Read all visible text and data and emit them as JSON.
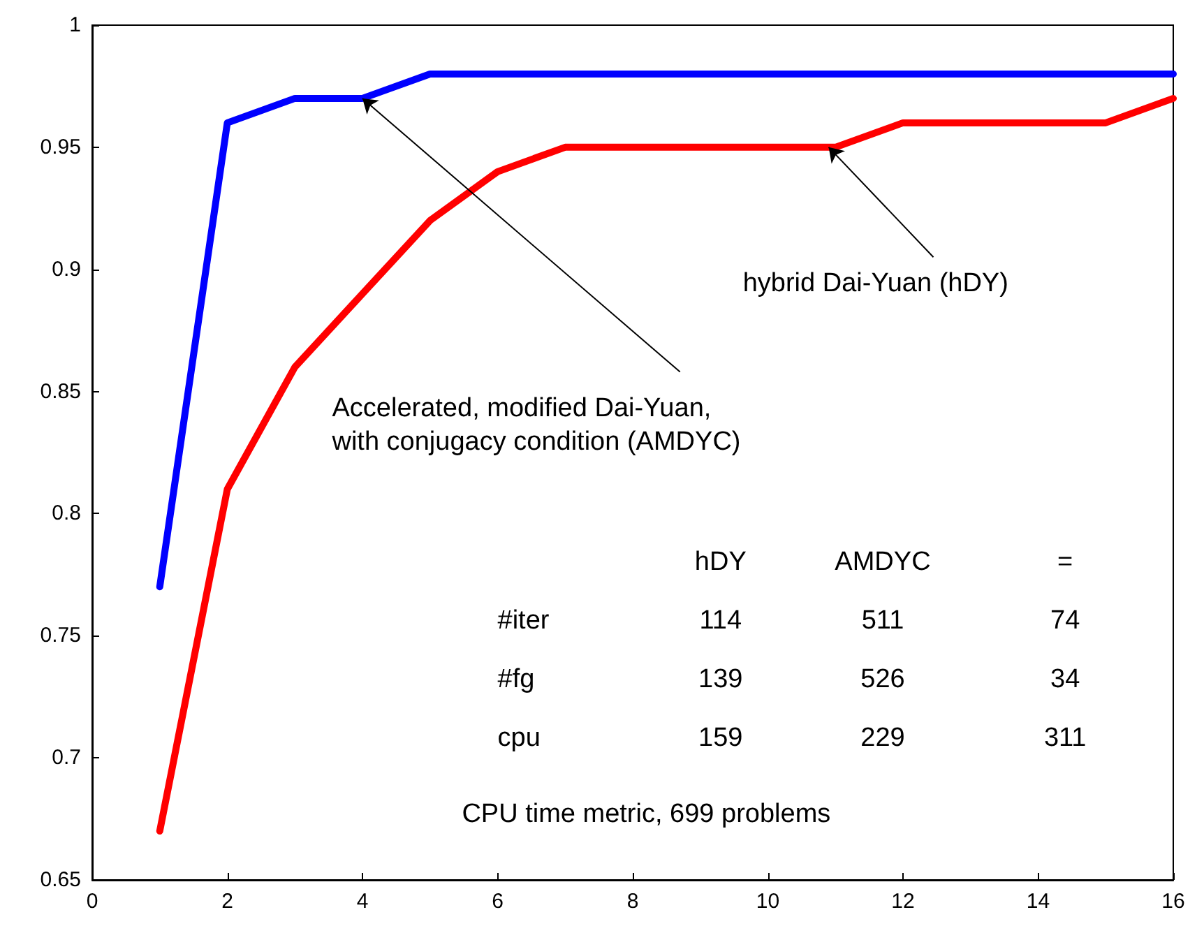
{
  "chart_data": {
    "type": "line",
    "x": [
      1,
      2,
      3,
      4,
      5,
      6,
      7,
      8,
      9,
      10,
      11,
      12,
      13,
      14,
      15,
      16
    ],
    "series": [
      {
        "color": "#0000ff",
        "values": [
          0.77,
          0.96,
          0.97,
          0.97,
          0.98,
          0.98,
          0.98,
          0.98,
          0.98,
          0.98,
          0.98,
          0.98,
          0.98,
          0.98,
          0.98,
          0.98
        ]
      },
      {
        "color": "#ff0000",
        "values": [
          0.67,
          0.81,
          0.86,
          0.89,
          0.92,
          0.94,
          0.95,
          0.95,
          0.95,
          0.95,
          0.95,
          0.96,
          0.96,
          0.96,
          0.96,
          0.97
        ]
      }
    ],
    "xlim": [
      0,
      16
    ],
    "xticks": [
      0,
      2,
      4,
      6,
      8,
      10,
      12,
      14,
      16
    ],
    "ylim": [
      0.65,
      1
    ],
    "yticks": [
      0.65,
      0.7,
      0.75,
      0.8,
      0.85,
      0.9,
      0.95,
      1
    ],
    "grid": false,
    "marker": "none",
    "line_style": "solid",
    "annotations": [
      {
        "text": "hybrid Dai-Yuan (hDY)",
        "x": 10.9,
        "y": 0.95
      },
      {
        "text": "Accelerated, modified Dai-Yuan,\nwith conjugacy condition (AMDYC)",
        "x": 4,
        "y": 0.97
      },
      "hDY",
      "AMDYC",
      "=",
      "#iter",
      "114",
      "511",
      "74",
      "#fg",
      "139",
      "526",
      "34",
      "cpu",
      "159",
      "229",
      "311",
      "CPU time metric, 699 problems"
    ]
  }
}
